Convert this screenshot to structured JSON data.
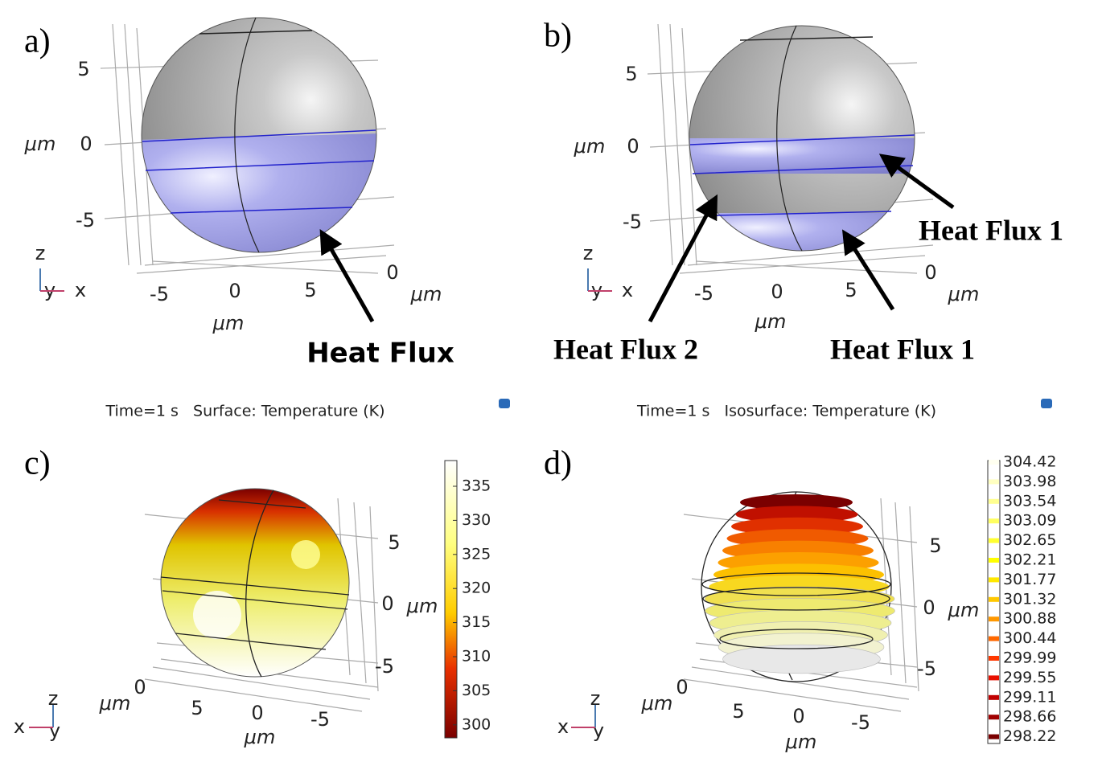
{
  "panels": [
    {
      "label": "a)",
      "z_ticks": [
        "5",
        "0",
        "-5"
      ],
      "x_ticks": [
        "-5",
        "0",
        "5"
      ],
      "y_ticks": [
        "0"
      ],
      "units": [
        "μm",
        "μm",
        "μm"
      ],
      "triad": [
        "z",
        "y",
        "x"
      ],
      "annotations": [
        "Heat Flux"
      ]
    },
    {
      "label": "b)",
      "z_ticks": [
        "5",
        "0",
        "-5"
      ],
      "x_ticks": [
        "-5",
        "0",
        "5"
      ],
      "y_ticks": [
        "0"
      ],
      "units": [
        "μm",
        "μm",
        "μm"
      ],
      "triad": [
        "z",
        "y",
        "x"
      ],
      "annotations": [
        "Heat Flux 1",
        "Heat Flux 2",
        "Heat Flux 1"
      ]
    },
    {
      "label": "c)",
      "z_ticks": [
        "5",
        "0",
        "-5"
      ],
      "x_ticks": [
        "5",
        "0",
        "-5"
      ],
      "y_ticks": [
        "0"
      ],
      "units": [
        "μm",
        "μm",
        "μm"
      ],
      "triad": [
        "z",
        "x",
        "y"
      ],
      "caption": "Time=1 s   Surface: Temperature (K)",
      "colorbar": [
        "335",
        "330",
        "325",
        "320",
        "315",
        "310",
        "305",
        "300"
      ]
    },
    {
      "label": "d)",
      "z_ticks": [
        "5",
        "0",
        "-5"
      ],
      "x_ticks": [
        "5",
        "0",
        "-5"
      ],
      "y_ticks": [
        "0"
      ],
      "units": [
        "μm",
        "μm",
        "μm"
      ],
      "triad": [
        "z",
        "x",
        "y"
      ],
      "caption": "Time=1 s   Isosurface: Temperature (K)",
      "colorbar": [
        "304.42",
        "303.98",
        "303.54",
        "303.09",
        "302.65",
        "302.21",
        "301.77",
        "301.32",
        "300.88",
        "300.44",
        "299.99",
        "299.55",
        "299.11",
        "298.66",
        "298.22"
      ]
    }
  ]
}
